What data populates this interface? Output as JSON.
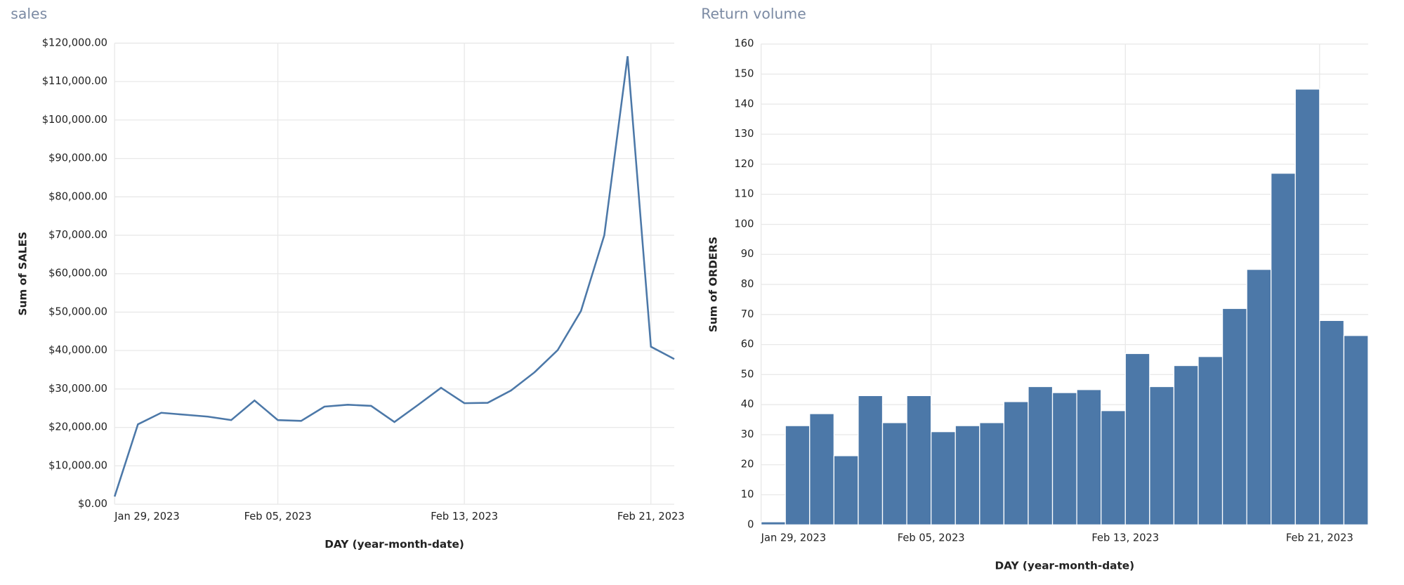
{
  "chart_data": [
    {
      "type": "line",
      "title": "sales",
      "x_label": "DAY (year-month-date)",
      "y_label": "Sum of SALES",
      "color": "#4c78a8",
      "grid": true,
      "x": [
        "2023-01-29",
        "2023-01-30",
        "2023-01-31",
        "2023-02-01",
        "2023-02-02",
        "2023-02-03",
        "2023-02-04",
        "2023-02-05",
        "2023-02-06",
        "2023-02-07",
        "2023-02-08",
        "2023-02-09",
        "2023-02-10",
        "2023-02-11",
        "2023-02-12",
        "2023-02-13",
        "2023-02-14",
        "2023-02-15",
        "2023-02-16",
        "2023-02-17",
        "2023-02-18",
        "2023-02-19",
        "2023-02-20",
        "2023-02-21",
        "2023-02-22"
      ],
      "values": [
        2000,
        20800,
        23800,
        23300,
        22800,
        21900,
        27000,
        21900,
        21700,
        25400,
        25900,
        25600,
        21400,
        25800,
        30300,
        26300,
        26400,
        29600,
        34300,
        40100,
        50300,
        70000,
        116600,
        41000,
        37800
      ],
      "xlim": [
        "2023-01-29",
        "2023-02-22"
      ],
      "xticks": [
        {
          "value": "2023-01-29",
          "label": "Jan 29, 2023"
        },
        {
          "value": "2023-02-05",
          "label": "Feb 05, 2023"
        },
        {
          "value": "2023-02-13",
          "label": "Feb 13, 2023"
        },
        {
          "value": "2023-02-21",
          "label": "Feb 21, 2023"
        }
      ],
      "ylim": [
        0,
        120000
      ],
      "yticks": [
        {
          "value": 0,
          "label": "$0.00"
        },
        {
          "value": 10000,
          "label": "$10,000.00"
        },
        {
          "value": 20000,
          "label": "$20,000.00"
        },
        {
          "value": 30000,
          "label": "$30,000.00"
        },
        {
          "value": 40000,
          "label": "$40,000.00"
        },
        {
          "value": 50000,
          "label": "$50,000.00"
        },
        {
          "value": 60000,
          "label": "$60,000.00"
        },
        {
          "value": 70000,
          "label": "$70,000.00"
        },
        {
          "value": 80000,
          "label": "$80,000.00"
        },
        {
          "value": 90000,
          "label": "$90,000.00"
        },
        {
          "value": 100000,
          "label": "$100,000.00"
        },
        {
          "value": 110000,
          "label": "$110,000.00"
        },
        {
          "value": 120000,
          "label": "$120,000.00"
        }
      ]
    },
    {
      "type": "bar",
      "title": "Return volume",
      "x_label": "DAY (year-month-date)",
      "y_label": "Sum of ORDERS",
      "color": "#4c78a8",
      "grid": true,
      "x": [
        "2023-01-29",
        "2023-01-30",
        "2023-01-31",
        "2023-02-01",
        "2023-02-02",
        "2023-02-03",
        "2023-02-04",
        "2023-02-05",
        "2023-02-06",
        "2023-02-07",
        "2023-02-08",
        "2023-02-09",
        "2023-02-10",
        "2023-02-11",
        "2023-02-12",
        "2023-02-13",
        "2023-02-14",
        "2023-02-15",
        "2023-02-16",
        "2023-02-17",
        "2023-02-18",
        "2023-02-19",
        "2023-02-20",
        "2023-02-21",
        "2023-02-22"
      ],
      "values": [
        1,
        33,
        37,
        23,
        43,
        34,
        43,
        31,
        33,
        34,
        41,
        46,
        44,
        45,
        38,
        57,
        46,
        53,
        56,
        72,
        85,
        117,
        145,
        68,
        63
      ],
      "xlim": [
        "2023-01-29",
        "2023-02-23"
      ],
      "xticks": [
        {
          "value": "2023-01-29",
          "label": "Jan 29, 2023"
        },
        {
          "value": "2023-02-05",
          "label": "Feb 05, 2023"
        },
        {
          "value": "2023-02-13",
          "label": "Feb 13, 2023"
        },
        {
          "value": "2023-02-21",
          "label": "Feb 21, 2023"
        }
      ],
      "ylim": [
        0,
        160
      ],
      "yticks": [
        0,
        10,
        20,
        30,
        40,
        50,
        60,
        70,
        80,
        90,
        100,
        110,
        120,
        130,
        140,
        150,
        160
      ]
    }
  ]
}
